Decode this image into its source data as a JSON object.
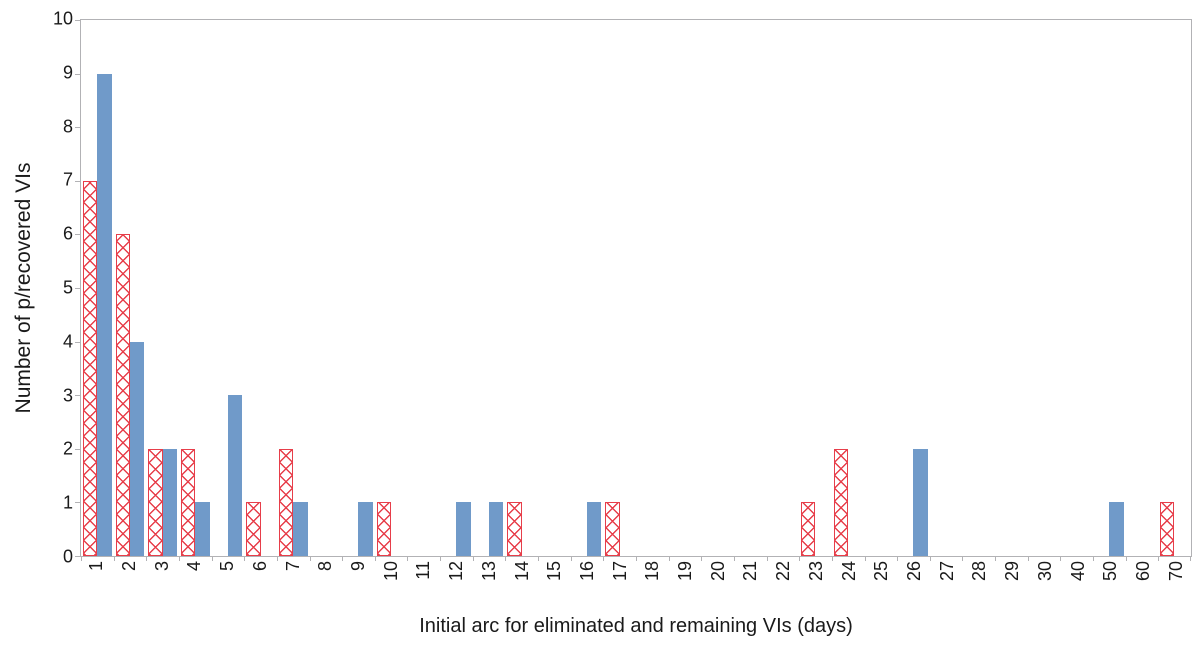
{
  "colors": {
    "background": "#ffffff",
    "axis": "#b2b2b5",
    "text": "#1a1a1a",
    "bar_blue": "#709ac9",
    "bar_red": "#e73e4a"
  },
  "chart_data": {
    "type": "bar",
    "title": "",
    "xlabel": "Initial arc for eliminated and remaining VIs (days)",
    "ylabel": "Number of p/recovered VIs",
    "categories": [
      "1",
      "2",
      "3",
      "4",
      "5",
      "6",
      "7",
      "8",
      "9",
      "10",
      "11",
      "12",
      "13",
      "14",
      "15",
      "16",
      "17",
      "18",
      "19",
      "20",
      "21",
      "22",
      "23",
      "24",
      "25",
      "26",
      "27",
      "28",
      "29",
      "30",
      "40",
      "50",
      "60",
      "70"
    ],
    "series": [
      {
        "name": "red-hatched",
        "style": "crosshatch",
        "color": "#e73e4a",
        "values": [
          7,
          6,
          2,
          2,
          0,
          1,
          2,
          0,
          0,
          1,
          0,
          0,
          0,
          1,
          0,
          0,
          1,
          0,
          0,
          0,
          0,
          0,
          1,
          2,
          0,
          0,
          0,
          0,
          0,
          0,
          0,
          0,
          0,
          1
        ]
      },
      {
        "name": "blue-solid",
        "style": "solid",
        "color": "#709ac9",
        "values": [
          9,
          4,
          2,
          1,
          3,
          0,
          1,
          0,
          1,
          0,
          0,
          1,
          1,
          0,
          0,
          1,
          0,
          0,
          0,
          0,
          0,
          0,
          0,
          0,
          0,
          2,
          0,
          0,
          0,
          0,
          0,
          1,
          0,
          0
        ]
      }
    ],
    "ylim": [
      0,
      10
    ],
    "yticks": [
      0,
      1,
      2,
      3,
      4,
      5,
      6,
      7,
      8,
      9,
      10
    ],
    "grid": false,
    "legend": "none"
  }
}
